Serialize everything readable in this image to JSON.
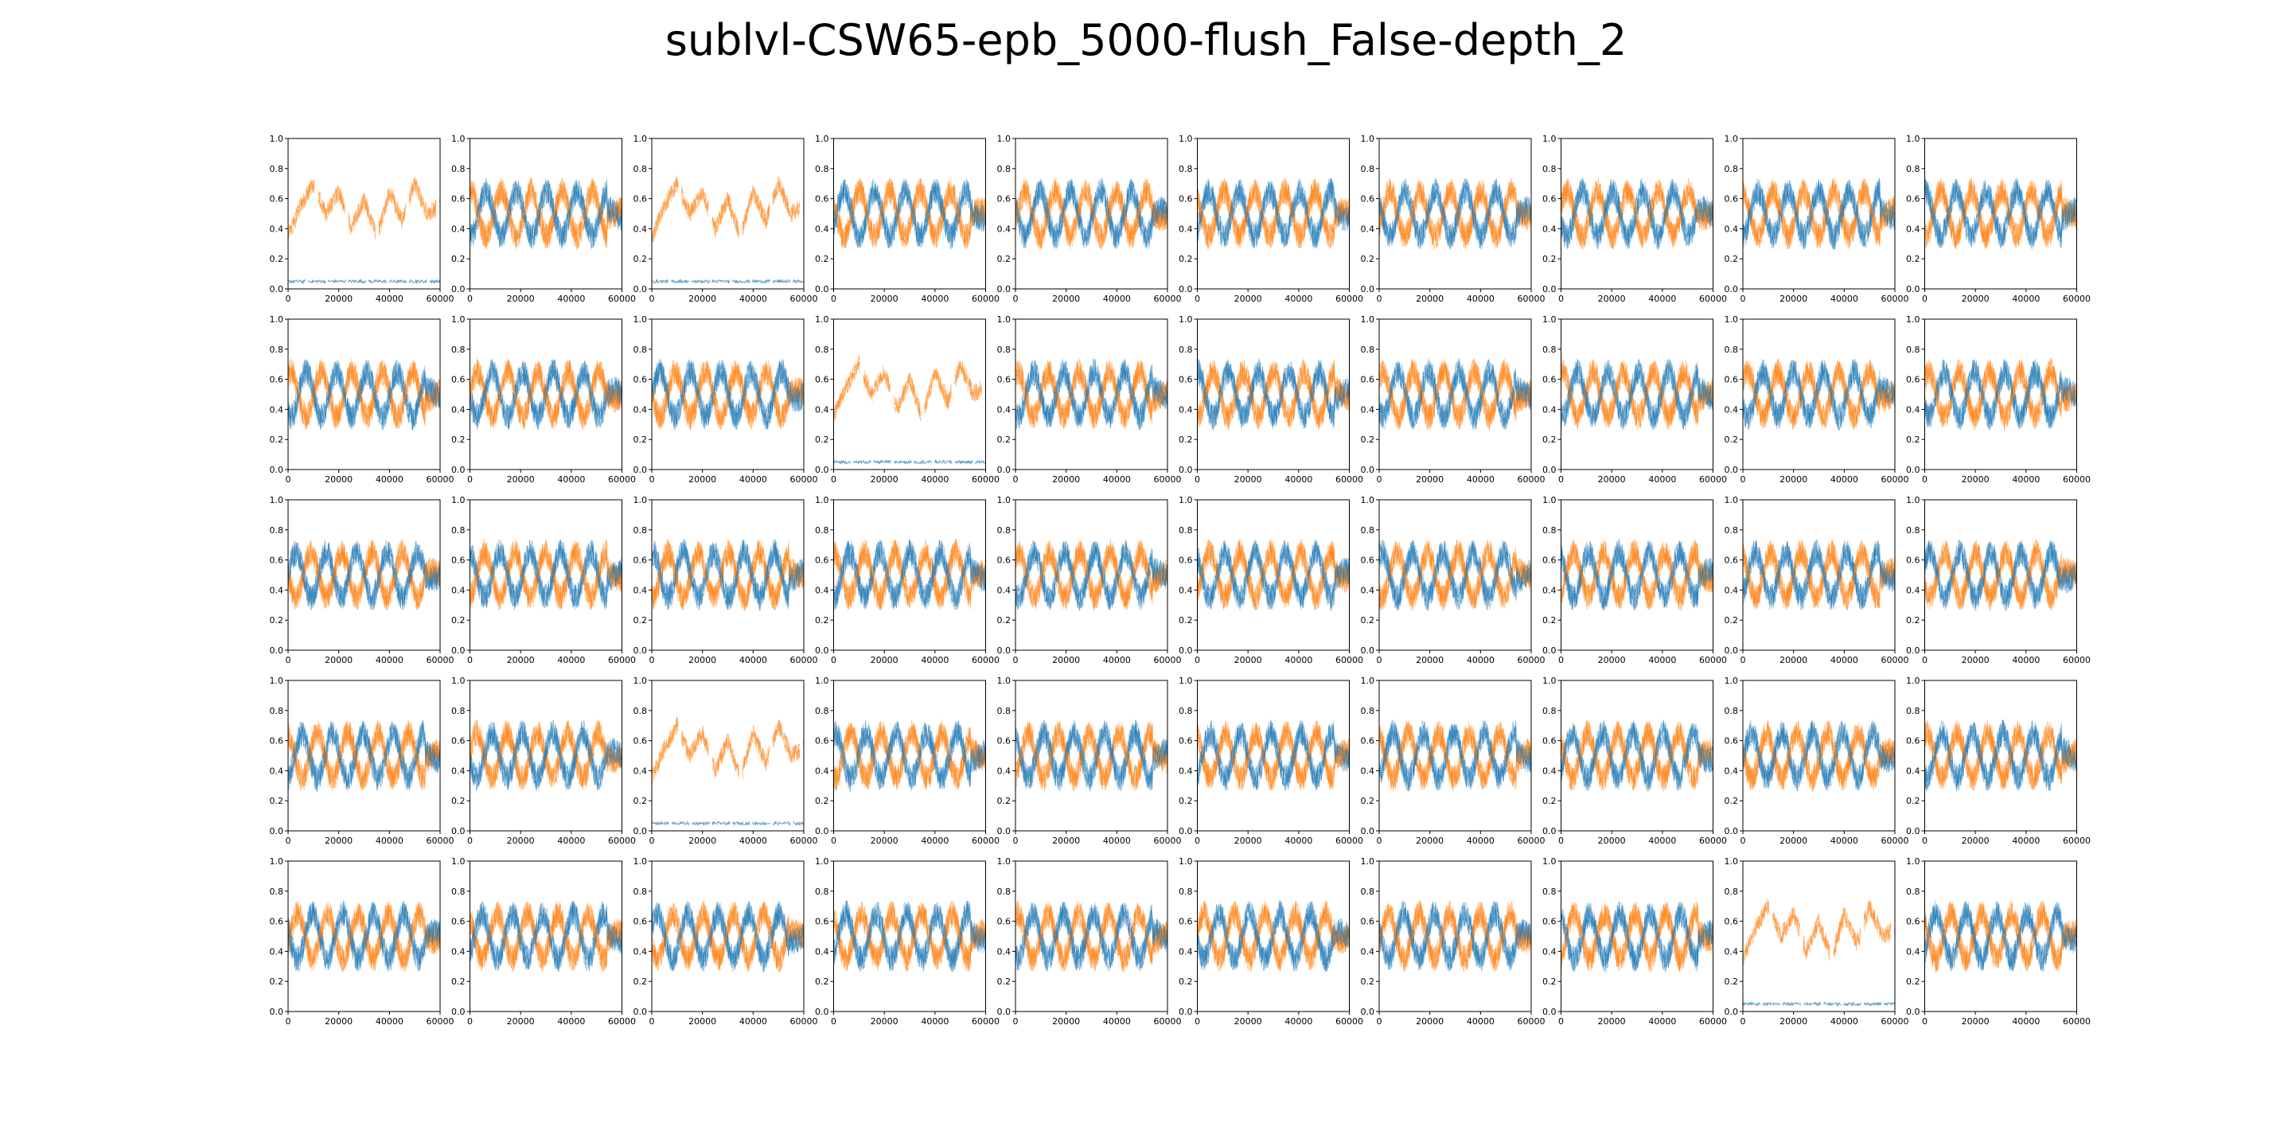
{
  "title": "sublvl-CSW65-epb_5000-flush_False-depth_2",
  "colors": {
    "series_a": "#1f77b4",
    "series_b": "#ff7f0e",
    "axes": "#000000"
  },
  "chart_data": {
    "type": "line",
    "layout": "grid",
    "rows": 5,
    "cols": 10,
    "xlim": [
      0,
      60000
    ],
    "ylim": [
      0.0,
      1.0
    ],
    "xticks": [
      0,
      20000,
      40000,
      60000
    ],
    "yticks": [
      0.0,
      0.2,
      0.4,
      0.6,
      0.8,
      1.0
    ],
    "xtick_labels": [
      "0",
      "20000",
      "40000",
      "60000"
    ],
    "ytick_labels": [
      "0.0",
      "0.2",
      "0.4",
      "0.6",
      "0.8",
      "1.0"
    ],
    "grid": false,
    "legend": "none",
    "series_names": [
      "",
      ""
    ],
    "panel_kinds": [
      [
        "skewed",
        "oscillating",
        "skewed",
        "oscillating",
        "oscillating",
        "oscillating",
        "oscillating",
        "oscillating",
        "oscillating",
        "oscillating"
      ],
      [
        "oscillating",
        "oscillating",
        "oscillating",
        "skewed",
        "oscillating",
        "oscillating",
        "oscillating",
        "oscillating",
        "oscillating",
        "oscillating"
      ],
      [
        "oscillating",
        "oscillating",
        "oscillating",
        "oscillating",
        "oscillating",
        "oscillating",
        "oscillating",
        "oscillating",
        "oscillating",
        "oscillating"
      ],
      [
        "oscillating",
        "oscillating",
        "skewed",
        "oscillating",
        "oscillating",
        "oscillating",
        "oscillating",
        "oscillating",
        "oscillating",
        "oscillating"
      ],
      [
        "oscillating",
        "oscillating",
        "oscillating",
        "oscillating",
        "oscillating",
        "oscillating",
        "oscillating",
        "oscillating",
        "skewed",
        "oscillating"
      ]
    ],
    "panel_profiles": {
      "oscillating": {
        "description_values": {
          "series_a": {
            "low": 0.35,
            "high": 0.65,
            "period": 12000,
            "end_value": 0.5
          },
          "series_b": {
            "low": 0.35,
            "high": 0.65,
            "period": 12000,
            "end_value": 0.5
          }
        }
      },
      "skewed": {
        "description_values": {
          "series_a": {
            "level": 0.05
          },
          "series_b": {
            "x": [
              0,
              5000,
              10000,
              15000,
              20000,
              25000,
              30000,
              35000,
              40000,
              45000,
              50000,
              55000,
              60000
            ],
            "y": [
              0.35,
              0.55,
              0.7,
              0.5,
              0.65,
              0.4,
              0.6,
              0.35,
              0.65,
              0.45,
              0.7,
              0.5,
              0.55
            ]
          }
        }
      }
    }
  }
}
